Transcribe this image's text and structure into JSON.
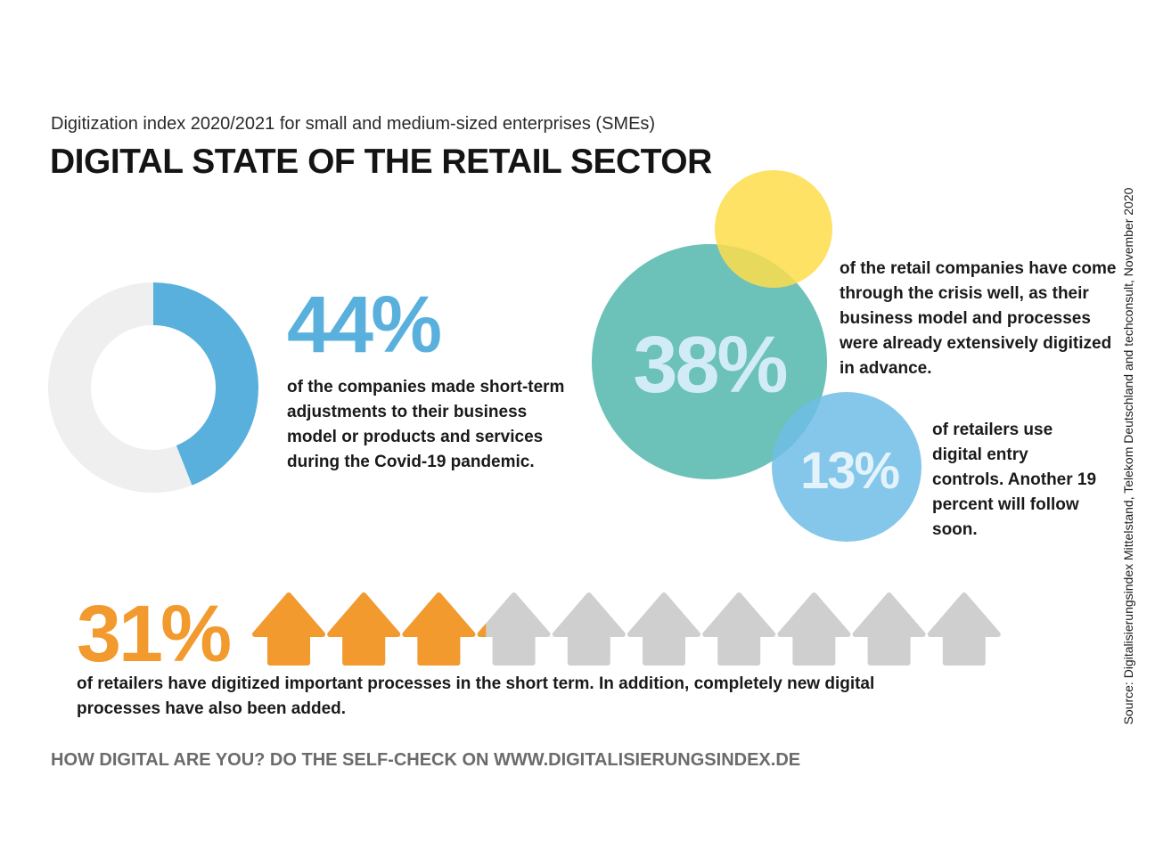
{
  "subtitle": "Digitization index 2020/2021 for small and medium-sized enterprises (SMEs)",
  "title": "DIGITAL STATE OF THE RETAIL SECTOR",
  "source": "Source: Digitalisierungsindex Mittelstand, Telekom Deutschland and techconsult, November 2020",
  "footer": "HOW DIGITAL ARE YOU? DO THE SELF-CHECK ON WWW.DIGITALISIERUNGSINDEX.DE",
  "colors": {
    "blue": "#5ab0dd",
    "light_gray": "#efefef",
    "teal": "#43b0a5",
    "yellow": "#fddd4a",
    "light_blue": "#6fbde6",
    "orange": "#f29a2e",
    "arrow_gray": "#cfcfcf"
  },
  "stat44": {
    "label": "44%",
    "text": "of the companies made short-term adjustments to their business model or products and services during the Covid-19 pandemic."
  },
  "stat38": {
    "label": "38%",
    "text": "of the retail companies have come through the crisis well, as their business model and processes were already extensively digitized in advance."
  },
  "stat13": {
    "label": "13%",
    "text": "of retailers use digital entry controls. Another 19 percent will follow soon."
  },
  "stat31": {
    "label": "31%",
    "text": "of retailers have digitized important processes in the short term. In addition, completely new digital processes have also been added."
  },
  "chart_data": [
    {
      "type": "pie",
      "subtype": "donut",
      "title": "44%",
      "values": [
        44,
        56
      ],
      "colors": [
        "#5ab0dd",
        "#efefef"
      ]
    },
    {
      "type": "bubble",
      "bubbles": [
        {
          "label": "38%",
          "value": 38,
          "color": "#43b0a5"
        },
        {
          "label": "13%",
          "value": 13,
          "color": "#6fbde6"
        },
        {
          "label": "",
          "value": 19,
          "color": "#fddd4a"
        }
      ]
    },
    {
      "type": "pictogram",
      "label": "31%",
      "value": 31,
      "total_icons": 10,
      "filled_icons": 3.1,
      "filled_color": "#f29a2e",
      "empty_color": "#cfcfcf"
    }
  ]
}
